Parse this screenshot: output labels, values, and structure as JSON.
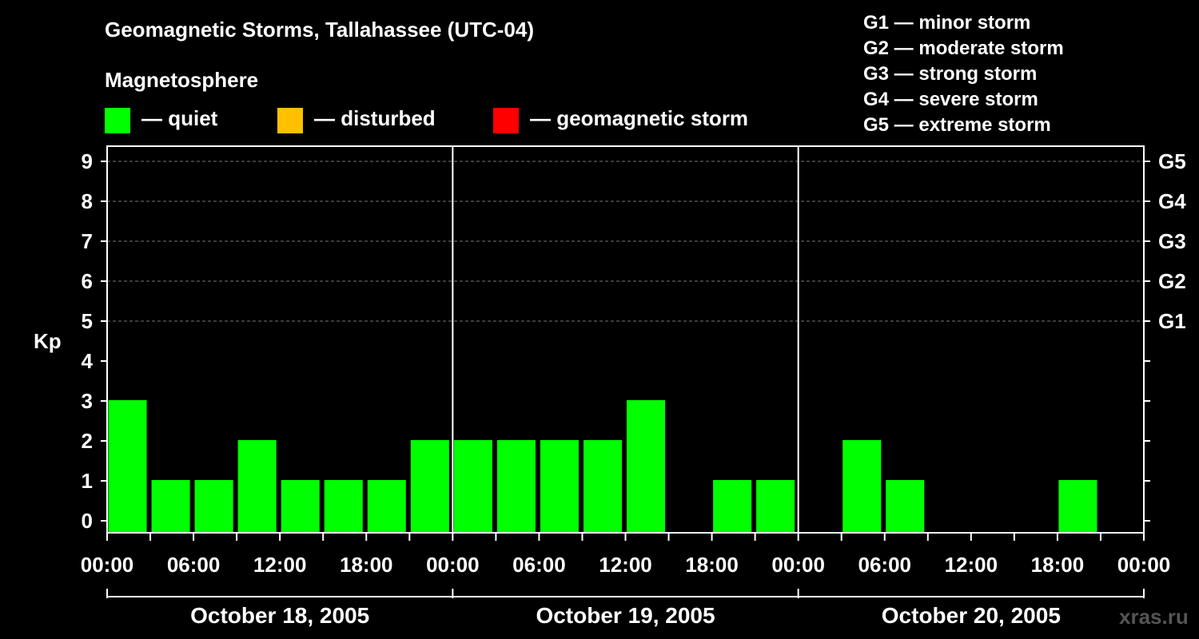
{
  "chart_data": {
    "type": "bar",
    "title": "Geomagnetic Storms, Tallahassee (UTC-04)",
    "subtitle": "Magnetosphere",
    "ylabel": "Kp",
    "ylim": [
      0,
      9
    ],
    "yticks": [
      "0",
      "1",
      "2",
      "3",
      "4",
      "5",
      "6",
      "7",
      "8",
      "9"
    ],
    "right_ticks": [
      {
        "kp": 5,
        "label": "G1"
      },
      {
        "kp": 6,
        "label": "G2"
      },
      {
        "kp": 7,
        "label": "G3"
      },
      {
        "kp": 8,
        "label": "G4"
      },
      {
        "kp": 9,
        "label": "G5"
      }
    ],
    "storm_scale": [
      "G1 — minor storm",
      "G2 — moderate storm",
      "G3 — strong storm",
      "G4 — severe storm",
      "G5 — extreme storm"
    ],
    "legend": [
      {
        "label": "— quiet",
        "color": "#00ff00"
      },
      {
        "label": "— disturbed",
        "color": "#ffc000"
      },
      {
        "label": "— geomagnetic storm",
        "color": "#ff0000"
      }
    ],
    "xticks": [
      "00:00",
      "06:00",
      "12:00",
      "18:00",
      "00:00",
      "06:00",
      "12:00",
      "18:00",
      "00:00",
      "06:00",
      "12:00",
      "18:00",
      "00:00"
    ],
    "days": [
      "October 18, 2005",
      "October 19, 2005",
      "October 20, 2005"
    ],
    "interval_hours": 3,
    "bar_color": "#00ff00",
    "values": [
      3,
      1,
      1,
      2,
      1,
      1,
      1,
      2,
      2,
      2,
      2,
      2,
      3,
      null,
      1,
      1,
      null,
      2,
      1,
      null,
      null,
      null,
      1,
      null
    ],
    "grid": true
  },
  "watermark": "xras.ru"
}
